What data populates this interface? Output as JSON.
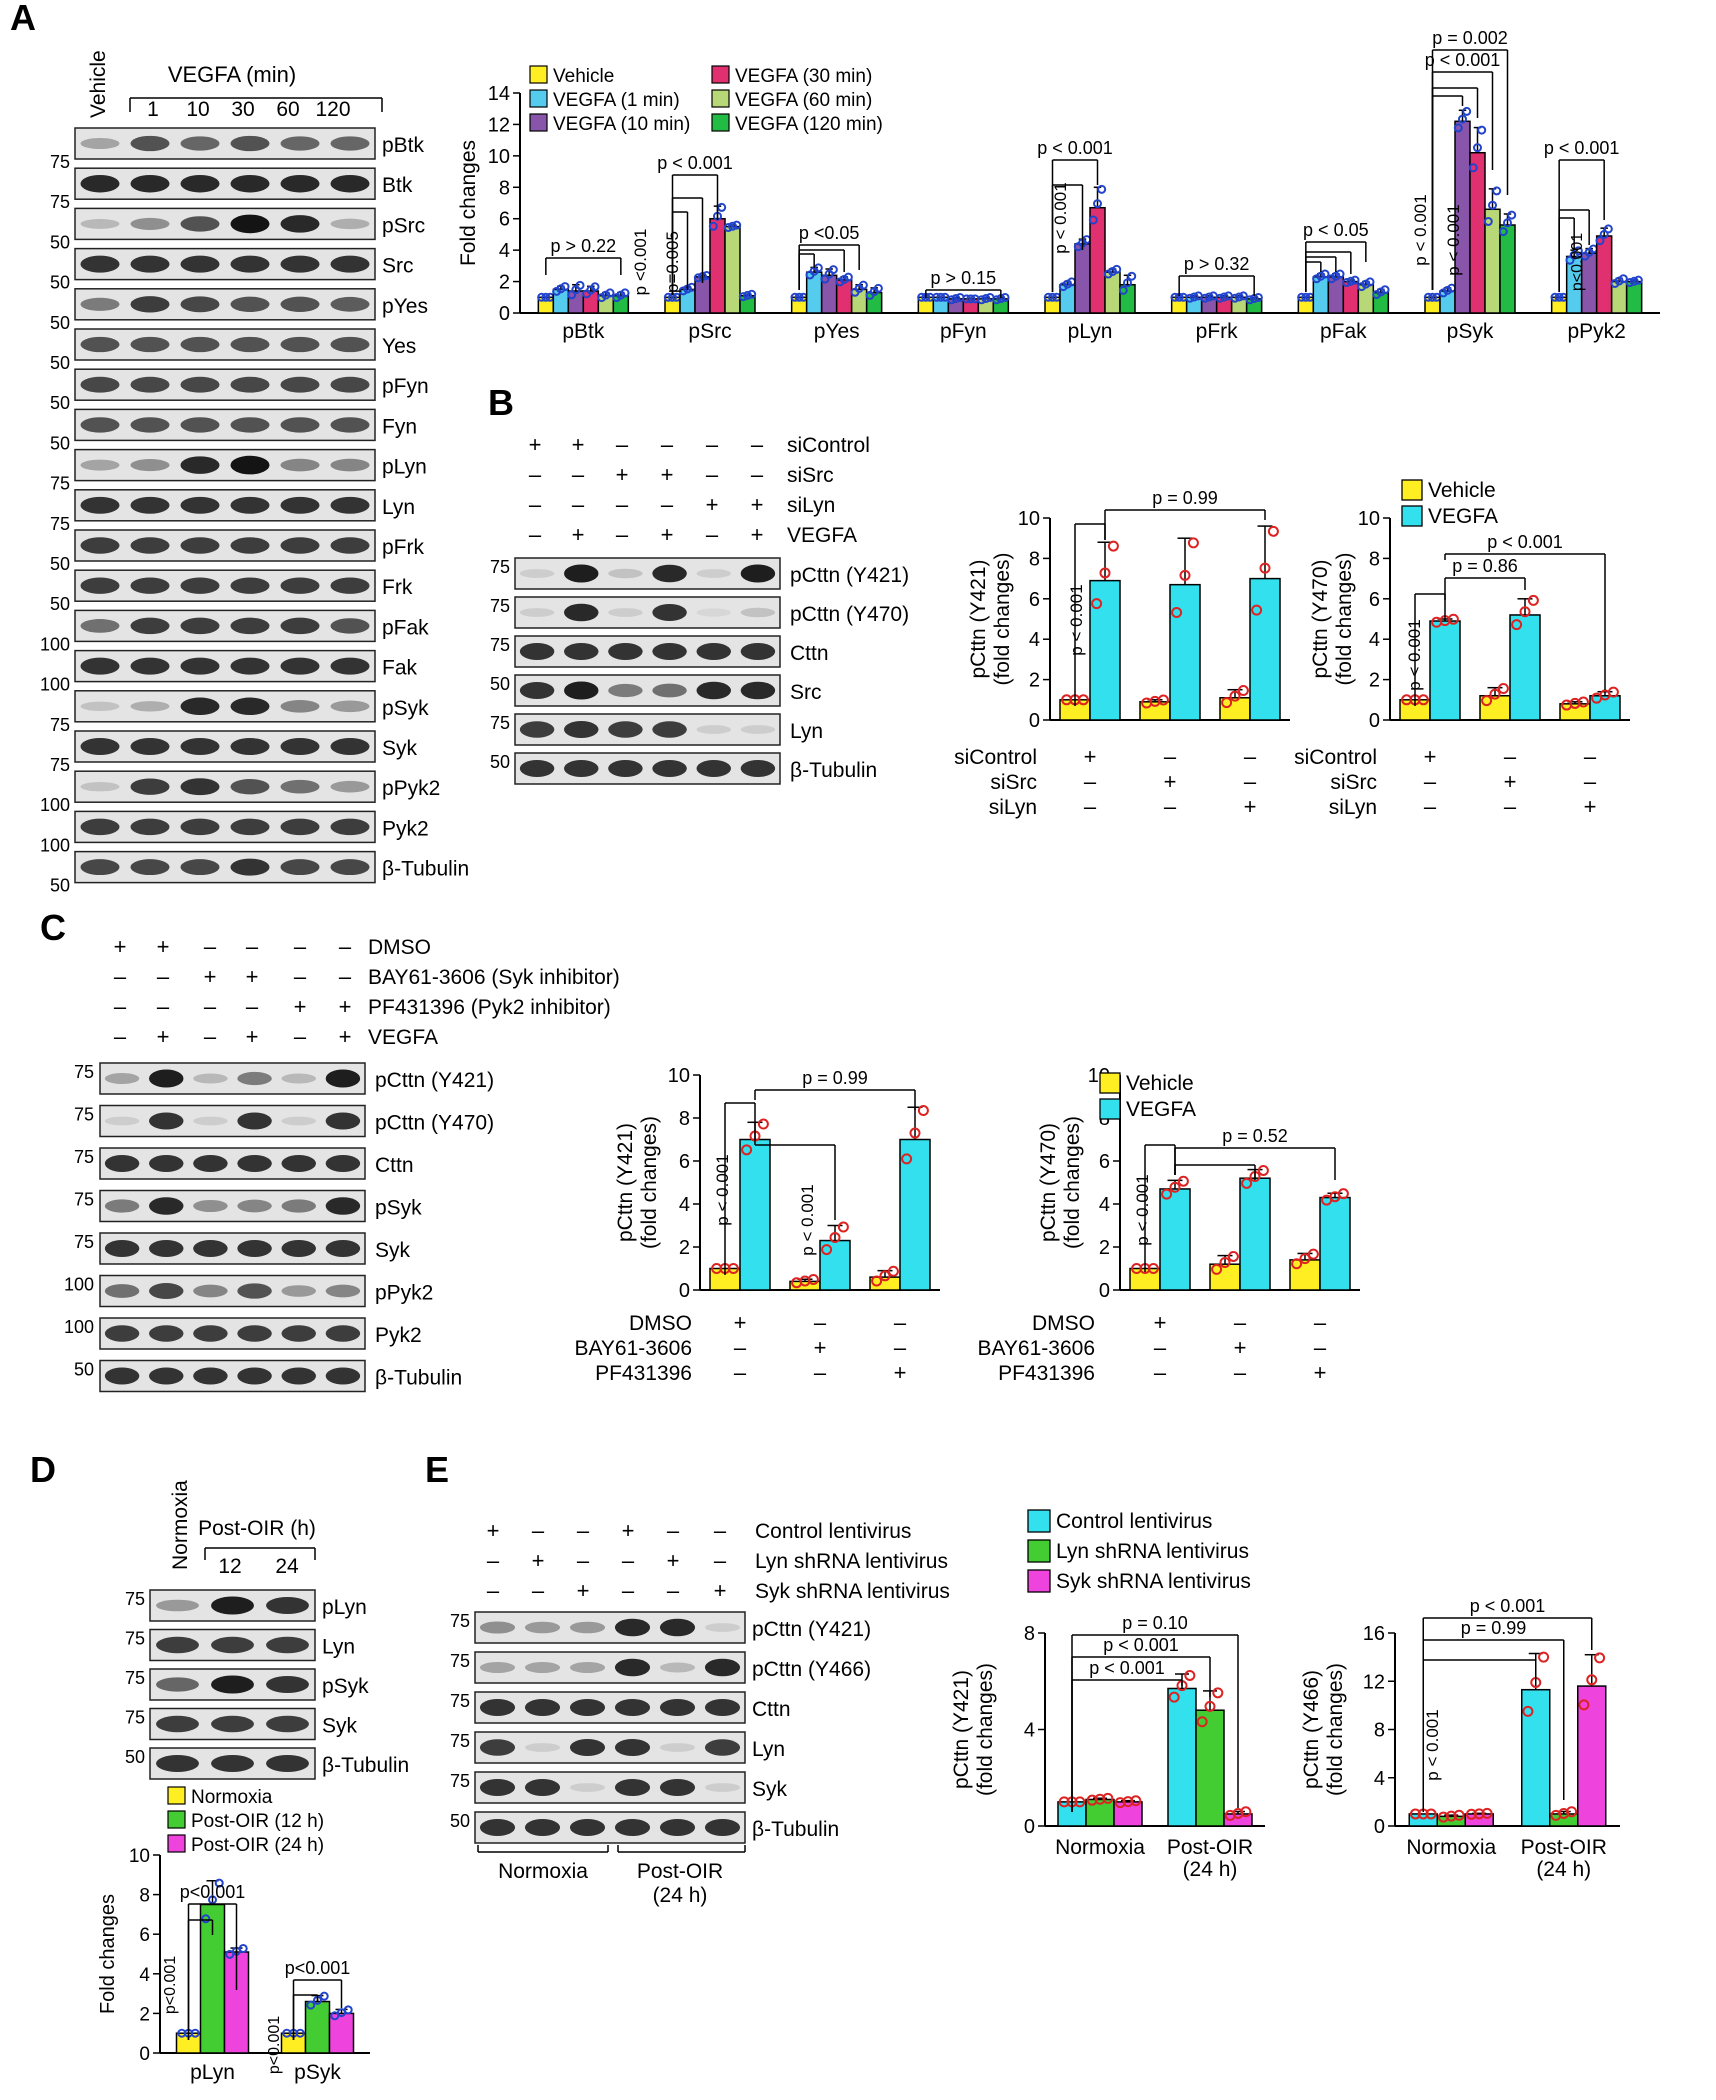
{
  "colors": {
    "vehicle": "#ffee22",
    "vegf1": "#55ccee",
    "vegf10": "#8855aa",
    "vegf30": "#e03070",
    "vegf60": "#b8d878",
    "vegf120": "#22bb44",
    "cyan": "#33e0ee",
    "green": "#44cc33",
    "magenta": "#ee44dd",
    "blue_dot": "#2244cc",
    "red_dot": "#dd2222"
  },
  "panelA": {
    "label": "A",
    "vehicle": "Vehicle",
    "treatment": "VEGFA (min)",
    "timepoints": [
      "1",
      "10",
      "30",
      "60",
      "120"
    ],
    "bands": [
      "pBtk",
      "Btk",
      "pSrc",
      "Src",
      "pYes",
      "Yes",
      "pFyn",
      "Fyn",
      "pLyn",
      "Lyn",
      "pFrk",
      "Frk",
      "pFak",
      "Fak",
      "pSyk",
      "Syk",
      "pPyk2",
      "Pyk2",
      "β-Tubulin"
    ],
    "markers": [
      "75",
      "75",
      "50",
      "50",
      "50",
      "50",
      "50",
      "50",
      "75",
      "75",
      "50",
      "50",
      "100",
      "100",
      "75",
      "75",
      "100",
      "100",
      "50"
    ],
    "band_levels": [
      [
        0.3,
        0.7,
        0.6,
        0.7,
        0.6,
        0.6
      ],
      [
        0.9,
        0.9,
        0.9,
        0.9,
        0.9,
        0.9
      ],
      [
        0.2,
        0.4,
        0.7,
        1.0,
        0.9,
        0.25
      ],
      [
        0.85,
        0.85,
        0.85,
        0.85,
        0.85,
        0.85
      ],
      [
        0.5,
        0.8,
        0.75,
        0.7,
        0.7,
        0.65
      ],
      [
        0.7,
        0.7,
        0.7,
        0.7,
        0.7,
        0.7
      ],
      [
        0.75,
        0.75,
        0.75,
        0.75,
        0.75,
        0.75
      ],
      [
        0.7,
        0.7,
        0.7,
        0.7,
        0.7,
        0.7
      ],
      [
        0.3,
        0.4,
        0.9,
        1.0,
        0.45,
        0.45
      ],
      [
        0.85,
        0.85,
        0.85,
        0.85,
        0.85,
        0.85
      ],
      [
        0.8,
        0.8,
        0.8,
        0.8,
        0.8,
        0.8
      ],
      [
        0.8,
        0.8,
        0.8,
        0.8,
        0.8,
        0.8
      ],
      [
        0.55,
        0.8,
        0.8,
        0.8,
        0.8,
        0.7
      ],
      [
        0.85,
        0.85,
        0.85,
        0.85,
        0.85,
        0.85
      ],
      [
        0.15,
        0.25,
        0.9,
        0.9,
        0.45,
        0.35
      ],
      [
        0.85,
        0.85,
        0.85,
        0.85,
        0.85,
        0.85
      ],
      [
        0.15,
        0.8,
        0.85,
        0.7,
        0.55,
        0.35
      ],
      [
        0.8,
        0.8,
        0.8,
        0.8,
        0.8,
        0.8
      ],
      [
        0.75,
        0.75,
        0.75,
        0.85,
        0.75,
        0.75
      ]
    ]
  },
  "chart_data": [
    {
      "id": "A",
      "type": "bar",
      "ylabel": "Fold changes",
      "ylim": [
        0,
        14
      ],
      "yticks": [
        0,
        2,
        4,
        6,
        8,
        10,
        12,
        14
      ],
      "categories": [
        "pBtk",
        "pSrc",
        "pYes",
        "pFyn",
        "pLyn",
        "pFrk",
        "pFak",
        "pSyk",
        "pPyk2"
      ],
      "series": [
        {
          "name": "Vehicle",
          "color": "#ffee22",
          "values": [
            1,
            1,
            1,
            1,
            1,
            1,
            1,
            1,
            1
          ],
          "err": [
            0,
            0,
            0,
            0,
            0,
            0,
            0,
            0,
            0
          ]
        },
        {
          "name": "VEGFA (1 min)",
          "color": "#55ccee",
          "values": [
            1.5,
            1.5,
            2.6,
            1,
            1.8,
            1,
            2.3,
            1.4,
            3.6
          ],
          "err": [
            0.2,
            0.15,
            0.3,
            0,
            0.2,
            0.1,
            0.2,
            0.2,
            0.4
          ]
        },
        {
          "name": "VEGFA (10 min)",
          "color": "#8855aa",
          "values": [
            1.4,
            2.3,
            2.4,
            0.9,
            4.4,
            1,
            2.3,
            12.2,
            3.8
          ],
          "err": [
            0.4,
            0.1,
            0.4,
            0.1,
            0.3,
            0.1,
            0.2,
            0.7,
            0.3
          ]
        },
        {
          "name": "VEGFA (30 min)",
          "color": "#e03070",
          "values": [
            1.4,
            6,
            2.1,
            0.9,
            6.7,
            1,
            2,
            10.2,
            4.9
          ],
          "err": [
            0.3,
            0.8,
            0.2,
            0,
            1.3,
            0.1,
            0.1,
            1.6,
            0.5
          ]
        },
        {
          "name": "VEGFA (60 min)",
          "color": "#b8d878",
          "values": [
            1.1,
            5.5,
            1.5,
            0.9,
            2.6,
            1,
            1.8,
            6.6,
            2
          ],
          "err": [
            0.2,
            0.1,
            0.3,
            0.1,
            0.2,
            0.1,
            0.2,
            1.3,
            0.2
          ]
        },
        {
          "name": "VEGFA (120 min)",
          "color": "#22bb44",
          "values": [
            1.1,
            1.1,
            1.3,
            0.9,
            1.8,
            0.9,
            1.3,
            5.6,
            2
          ],
          "err": [
            0.2,
            0.1,
            0.3,
            0.1,
            0.6,
            0.1,
            0.2,
            0.7,
            0.1
          ]
        }
      ],
      "annotations": [
        "p > 0.22",
        "p < 0.001",
        "p <0.001",
        "p=0.005",
        "p <0.05",
        "p > 0.15",
        "p < 0.001",
        "p < 0.001",
        "p > 0.32",
        "p < 0.05",
        "p < 0.001",
        "p < 0.001",
        "p < 0.001",
        "p = 0.002",
        "p < 0.001",
        "p<0.001"
      ]
    },
    {
      "id": "B1",
      "type": "bar",
      "ylabel": "pCttn (Y421)\n(fold changes)",
      "ylim": [
        0,
        10
      ],
      "yticks": [
        0,
        2,
        4,
        6,
        8,
        10
      ],
      "categories": [
        "siControl",
        "siSrc",
        "siLyn"
      ],
      "series": [
        {
          "name": "Vehicle",
          "values": [
            1,
            0.9,
            1.1
          ],
          "err": [
            0,
            0.1,
            0.4
          ]
        },
        {
          "name": "VEGFA",
          "values": [
            6.9,
            6.7,
            7
          ],
          "err": [
            1.9,
            2.3,
            2.6
          ]
        }
      ],
      "annotations": [
        "p < 0.001",
        "p = 0.99"
      ]
    },
    {
      "id": "B2",
      "type": "bar",
      "ylabel": "pCttn (Y470)\n(fold changes)",
      "ylim": [
        0,
        10
      ],
      "yticks": [
        0,
        2,
        4,
        6,
        8,
        10
      ],
      "categories": [
        "siControl",
        "siSrc",
        "siLyn"
      ],
      "series": [
        {
          "name": "Vehicle",
          "values": [
            1,
            1.2,
            0.8
          ],
          "err": [
            0,
            0.4,
            0.1
          ]
        },
        {
          "name": "VEGFA",
          "values": [
            4.9,
            5.2,
            1.2
          ],
          "err": [
            0.1,
            0.8,
            0.2
          ]
        }
      ],
      "annotations": [
        "p < 0.001",
        "p = 0.86",
        "p < 0.001"
      ]
    },
    {
      "id": "C1",
      "type": "bar",
      "ylabel": "pCttn (Y421)\n(fold changes)",
      "ylim": [
        0,
        10
      ],
      "yticks": [
        0,
        2,
        4,
        6,
        8,
        10
      ],
      "categories": [
        "DMSO",
        "BAY61-3606",
        "PF431396"
      ],
      "series": [
        {
          "name": "Vehicle",
          "values": [
            1,
            0.4,
            0.6
          ],
          "err": [
            0,
            0.1,
            0.3
          ]
        },
        {
          "name": "VEGFA",
          "values": [
            7,
            2.3,
            7
          ],
          "err": [
            0.8,
            0.7,
            1.5
          ]
        }
      ],
      "annotations": [
        "p < 0.001",
        "p < 0.001",
        "p = 0.99"
      ]
    },
    {
      "id": "C2",
      "type": "bar",
      "ylabel": "pCttn (Y470)\n(fold changes)",
      "ylim": [
        0,
        10
      ],
      "yticks": [
        0,
        2,
        4,
        6,
        8,
        10
      ],
      "categories": [
        "DMSO",
        "BAY61-3606",
        "PF431396"
      ],
      "series": [
        {
          "name": "Vehicle",
          "values": [
            1,
            1.2,
            1.4
          ],
          "err": [
            0,
            0.4,
            0.3
          ]
        },
        {
          "name": "VEGFA",
          "values": [
            4.7,
            5.2,
            4.3
          ],
          "err": [
            0.4,
            0.4,
            0.2
          ]
        }
      ],
      "annotations": [
        "p < 0.001",
        "p = 0.52"
      ]
    },
    {
      "id": "D",
      "type": "bar",
      "ylabel": "Fold changes",
      "ylim": [
        0,
        10
      ],
      "yticks": [
        0,
        2,
        4,
        6,
        8,
        10
      ],
      "categories": [
        "pLyn",
        "pSyk"
      ],
      "series": [
        {
          "name": "Normoxia",
          "values": [
            1,
            1
          ],
          "err": [
            0,
            0
          ]
        },
        {
          "name": "Post-OIR (12 h)",
          "values": [
            7.5,
            2.6
          ],
          "err": [
            1.2,
            0.3
          ]
        },
        {
          "name": "Post-OIR (24 h)",
          "values": [
            5.1,
            2
          ],
          "err": [
            0.2,
            0.2
          ]
        }
      ],
      "annotations": [
        "p<0.001",
        "p<0.001",
        "p<0.001",
        "p<0.001"
      ]
    },
    {
      "id": "E1",
      "type": "bar",
      "ylabel": "pCttn (Y421)\n(fold changes)",
      "ylim": [
        0,
        8
      ],
      "yticks": [
        0,
        4,
        8
      ],
      "categories": [
        "Normoxia",
        "Post-OIR\n(24 h)"
      ],
      "series": [
        {
          "name": "Control lentivirus",
          "values": [
            1,
            5.7
          ],
          "err": [
            0,
            0.6
          ]
        },
        {
          "name": "Lyn shRNA lentivirus",
          "values": [
            1.1,
            4.8
          ],
          "err": [
            0.05,
            0.8
          ]
        },
        {
          "name": "Syk shRNA lentivirus",
          "values": [
            1,
            0.5
          ],
          "err": [
            0.05,
            0.1
          ]
        }
      ],
      "annotations": [
        "p < 0.001",
        "p < 0.001",
        "p = 0.10"
      ]
    },
    {
      "id": "E2",
      "type": "bar",
      "ylabel": "pCttn (Y466)\n(fold changes)",
      "ylim": [
        0,
        16
      ],
      "yticks": [
        0,
        4,
        8,
        12,
        16
      ],
      "categories": [
        "Normoxia",
        "Post-OIR\n(24 h)"
      ],
      "series": [
        {
          "name": "Control lentivirus",
          "values": [
            1,
            11.3
          ],
          "err": [
            0,
            3
          ]
        },
        {
          "name": "Lyn shRNA lentivirus",
          "values": [
            0.8,
            1
          ],
          "err": [
            0.1,
            0.2
          ]
        },
        {
          "name": "Syk shRNA lentivirus",
          "values": [
            1,
            11.6
          ],
          "err": [
            0.05,
            2.6
          ]
        }
      ],
      "annotations": [
        "p < 0.001",
        "p = 0.99",
        "p < 0.001"
      ]
    }
  ],
  "panelB": {
    "label": "B",
    "conditions": [
      "siControl",
      "siSrc",
      "siLyn",
      "VEGFA"
    ],
    "signs": [
      [
        "+",
        "+",
        "–",
        "–",
        "–",
        "–"
      ],
      [
        "–",
        "–",
        "+",
        "+",
        "–",
        "–"
      ],
      [
        "–",
        "–",
        "–",
        "–",
        "+",
        "+"
      ],
      [
        "–",
        "+",
        "–",
        "+",
        "–",
        "+"
      ]
    ],
    "bands": [
      "pCttn (Y421)",
      "pCttn (Y470)",
      "Cttn",
      "Src",
      "Lyn",
      "β-Tubulin"
    ],
    "markers": [
      "75",
      "75",
      "75",
      "50",
      "75",
      "50"
    ],
    "legend": [
      "Vehicle",
      "VEGFA"
    ],
    "xsigns": [
      [
        "+",
        "–",
        "–"
      ],
      [
        "–",
        "+",
        "–"
      ],
      [
        "–",
        "–",
        "+"
      ]
    ],
    "band_levels": [
      [
        0.1,
        0.95,
        0.15,
        0.9,
        0.1,
        0.95
      ],
      [
        0.1,
        0.9,
        0.1,
        0.85,
        0.05,
        0.15
      ],
      [
        0.85,
        0.85,
        0.85,
        0.85,
        0.85,
        0.85
      ],
      [
        0.85,
        0.95,
        0.5,
        0.55,
        0.9,
        0.9
      ],
      [
        0.8,
        0.85,
        0.8,
        0.8,
        0.1,
        0.1
      ],
      [
        0.85,
        0.85,
        0.85,
        0.85,
        0.85,
        0.85
      ]
    ]
  },
  "panelC": {
    "label": "C",
    "conditions": [
      "DMSO",
      "BAY61-3606 (Syk inhibitor)",
      "PF431396 (Pyk2 inhibitor)",
      "VEGFA"
    ],
    "signs": [
      [
        "+",
        "+",
        "–",
        "–",
        "–",
        "–"
      ],
      [
        "–",
        "–",
        "+",
        "+",
        "–",
        "–"
      ],
      [
        "–",
        "–",
        "–",
        "–",
        "+",
        "+"
      ],
      [
        "–",
        "+",
        "–",
        "+",
        "–",
        "+"
      ]
    ],
    "bands": [
      "pCttn (Y421)",
      "pCttn (Y470)",
      "Cttn",
      "pSyk",
      "Syk",
      "pPyk2",
      "Pyk2",
      "β-Tubulin"
    ],
    "markers": [
      "75",
      "75",
      "75",
      "75",
      "75",
      "100",
      "100",
      "50"
    ],
    "legend": [
      "Vehicle",
      "VEGFA"
    ],
    "xlabels": [
      "DMSO",
      "BAY61-3606",
      "PF431396"
    ],
    "xsigns": [
      [
        "+",
        "–",
        "–"
      ],
      [
        "–",
        "+",
        "–"
      ],
      [
        "–",
        "–",
        "+"
      ]
    ],
    "band_levels": [
      [
        0.3,
        0.95,
        0.2,
        0.5,
        0.2,
        0.95
      ],
      [
        0.1,
        0.85,
        0.1,
        0.85,
        0.1,
        0.85
      ],
      [
        0.85,
        0.85,
        0.85,
        0.85,
        0.85,
        0.85
      ],
      [
        0.5,
        0.9,
        0.4,
        0.45,
        0.5,
        0.9
      ],
      [
        0.85,
        0.85,
        0.85,
        0.85,
        0.85,
        0.85
      ],
      [
        0.55,
        0.75,
        0.45,
        0.7,
        0.35,
        0.45
      ],
      [
        0.8,
        0.8,
        0.8,
        0.8,
        0.8,
        0.8
      ],
      [
        0.85,
        0.85,
        0.85,
        0.85,
        0.85,
        0.85
      ]
    ]
  },
  "panelD": {
    "label": "D",
    "normoxia": "Normoxia",
    "treatment": "Post-OIR (h)",
    "timepoints": [
      "12",
      "24"
    ],
    "bands": [
      "pLyn",
      "Lyn",
      "pSyk",
      "Syk",
      "β-Tubulin"
    ],
    "markers": [
      "75",
      "75",
      "75",
      "75",
      "50"
    ],
    "legend": [
      "Normoxia",
      "Post-OIR (12 h)",
      "Post-OIR (24 h)"
    ],
    "band_levels": [
      [
        0.35,
        0.95,
        0.85
      ],
      [
        0.8,
        0.8,
        0.8
      ],
      [
        0.6,
        0.95,
        0.85
      ],
      [
        0.8,
        0.8,
        0.8
      ],
      [
        0.85,
        0.85,
        0.85
      ]
    ]
  },
  "panelE": {
    "label": "E",
    "conditions": [
      "Control lentivirus",
      "Lyn shRNA lentivirus",
      "Syk shRNA lentivirus"
    ],
    "signs": [
      [
        "+",
        "–",
        "–",
        "+",
        "–",
        "–"
      ],
      [
        "–",
        "+",
        "–",
        "–",
        "+",
        "–"
      ],
      [
        "–",
        "–",
        "+",
        "–",
        "–",
        "+"
      ]
    ],
    "bands": [
      "pCttn (Y421)",
      "pCttn (Y466)",
      "Cttn",
      "Lyn",
      "Syk",
      "β-Tubulin"
    ],
    "markers": [
      "75",
      "75",
      "75",
      "75",
      "75",
      "50"
    ],
    "groups": [
      "Normoxia",
      "Post-OIR\n(24 h)"
    ],
    "legend": [
      "Control lentivirus",
      "Lyn shRNA lentivirus",
      "Syk shRNA lentivirus"
    ],
    "band_levels": [
      [
        0.4,
        0.35,
        0.35,
        0.9,
        0.9,
        0.1
      ],
      [
        0.3,
        0.3,
        0.3,
        0.9,
        0.2,
        0.9
      ],
      [
        0.85,
        0.85,
        0.85,
        0.85,
        0.85,
        0.85
      ],
      [
        0.8,
        0.1,
        0.85,
        0.85,
        0.1,
        0.8
      ],
      [
        0.85,
        0.85,
        0.1,
        0.85,
        0.85,
        0.1
      ],
      [
        0.85,
        0.85,
        0.85,
        0.85,
        0.85,
        0.85
      ]
    ]
  }
}
